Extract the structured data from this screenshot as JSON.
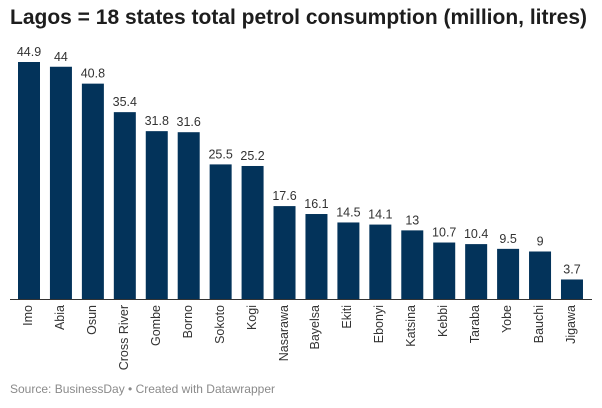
{
  "chart_data": {
    "type": "bar",
    "title": "Lagos = 18 states total petrol consumption (million, litres)",
    "categories": [
      "Imo",
      "Abia",
      "Osun",
      "Cross River",
      "Gombe",
      "Borno",
      "Sokoto",
      "Kogi",
      "Nasarawa",
      "Bayelsa",
      "Ekiti",
      "Ebonyi",
      "Katsina",
      "Kebbi",
      "Taraba",
      "Yobe",
      "Bauchi",
      "Jigawa"
    ],
    "values": [
      44.9,
      44,
      40.8,
      35.4,
      31.8,
      31.6,
      25.5,
      25.2,
      17.6,
      16.1,
      14.5,
      14.1,
      13,
      10.7,
      10.4,
      9.5,
      9,
      3.7
    ],
    "value_labels": [
      "44.9",
      "44",
      "40.8",
      "35.4",
      "31.8",
      "31.6",
      "25.5",
      "25.2",
      "17.6",
      "16.1",
      "14.5",
      "14.1",
      "13",
      "10.7",
      "10.4",
      "9.5",
      "9",
      "3.7"
    ],
    "xlabel": "",
    "ylabel": "",
    "ylim": [
      0,
      44.9
    ],
    "grid": false,
    "bar_color": "#03335a"
  },
  "footer": {
    "source": "Source: BusinessDay • Created with Datawrapper"
  }
}
